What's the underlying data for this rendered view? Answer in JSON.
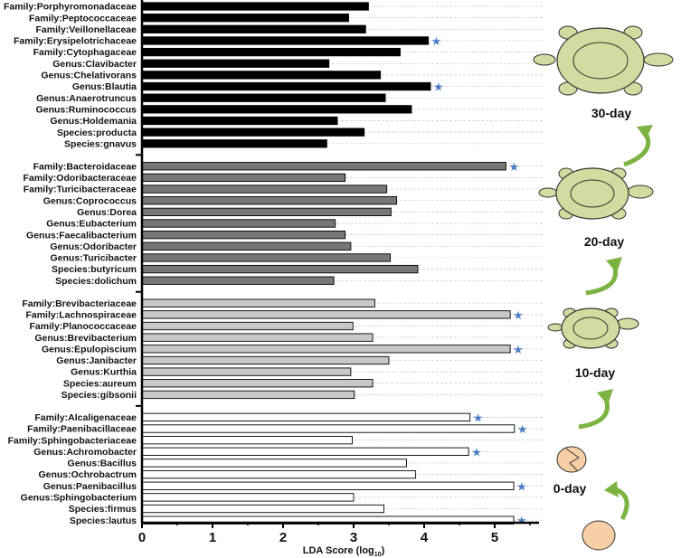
{
  "chart_data": {
    "type": "bar",
    "orientation": "horizontal",
    "xlabel": "LDA Score (log",
    "xlabel_sub": "10",
    "xlabel_end": ")",
    "xlim": [
      0,
      5.6
    ],
    "xticks": [
      "0",
      "1",
      "2",
      "3",
      "4",
      "5"
    ],
    "significant_marker": "★",
    "groups": [
      {
        "stage": "30-day",
        "color": "#000000",
        "bars": [
          {
            "label": "Family:Porphyromonadaceae",
            "value": 3.21,
            "significant": false
          },
          {
            "label": "Family:Peptococcaceae",
            "value": 2.93,
            "significant": false
          },
          {
            "label": "Family:Veillonellaceae",
            "value": 3.17,
            "significant": false
          },
          {
            "label": "Family:Erysipelotrichaceae",
            "value": 4.06,
            "significant": true
          },
          {
            "label": "Family:Cytophagaceae",
            "value": 3.66,
            "significant": false
          },
          {
            "label": "Genus:Clavibacter",
            "value": 2.65,
            "significant": false
          },
          {
            "label": "Genus:Chelativorans",
            "value": 3.38,
            "significant": false
          },
          {
            "label": "Genus:Blautia",
            "value": 4.09,
            "significant": true
          },
          {
            "label": "Genus:Anaerotruncus",
            "value": 3.45,
            "significant": false
          },
          {
            "label": "Genus:Ruminococcus",
            "value": 3.82,
            "significant": false
          },
          {
            "label": "Genus:Holdemania",
            "value": 2.77,
            "significant": false
          },
          {
            "label": "Species:producta",
            "value": 3.15,
            "significant": false
          },
          {
            "label": "Species:gnavus",
            "value": 2.62,
            "significant": false
          }
        ]
      },
      {
        "stage": "20-day",
        "color": "#777777",
        "bars": [
          {
            "label": "Family:Bacteroidaceae",
            "value": 5.16,
            "significant": true
          },
          {
            "label": "Family:Odoribacteraceae",
            "value": 2.88,
            "significant": false
          },
          {
            "label": "Family:Turicibacteraceae",
            "value": 3.47,
            "significant": false
          },
          {
            "label": "Genus:Coprococcus",
            "value": 3.61,
            "significant": false
          },
          {
            "label": "Genus:Dorea",
            "value": 3.53,
            "significant": false
          },
          {
            "label": "Genus:Eubacterium",
            "value": 2.74,
            "significant": false
          },
          {
            "label": "Genus:Faecalibacterium",
            "value": 2.88,
            "significant": false
          },
          {
            "label": "Genus:Odoribacter",
            "value": 2.96,
            "significant": false
          },
          {
            "label": "Genus:Turicibacter",
            "value": 3.52,
            "significant": false
          },
          {
            "label": "Species:butyricum",
            "value": 3.91,
            "significant": false
          },
          {
            "label": "Species:dolichum",
            "value": 2.72,
            "significant": false
          }
        ]
      },
      {
        "stage": "10-day",
        "color": "#c8c8c8",
        "bars": [
          {
            "label": "Family:Brevibacteriaceae",
            "value": 3.3,
            "significant": false
          },
          {
            "label": "Family:Lachnospiraceae",
            "value": 5.22,
            "significant": true
          },
          {
            "label": "Family:Planococcaceae",
            "value": 2.99,
            "significant": false
          },
          {
            "label": "Genus:Brevibacterium",
            "value": 3.27,
            "significant": false
          },
          {
            "label": "Genus:Epulopiscium",
            "value": 5.22,
            "significant": true
          },
          {
            "label": "Genus:Janibacter",
            "value": 3.5,
            "significant": false
          },
          {
            "label": "Genus:Kurthia",
            "value": 2.96,
            "significant": false
          },
          {
            "label": "Species:aureum",
            "value": 3.27,
            "significant": false
          },
          {
            "label": "Species:gibsonii",
            "value": 3.01,
            "significant": false
          }
        ]
      },
      {
        "stage": "0-day",
        "color": "#ffffff",
        "bars": [
          {
            "label": "Family:Alcaligenaceae",
            "value": 4.65,
            "significant": true
          },
          {
            "label": "Family:Paenibacillaceae",
            "value": 5.28,
            "significant": true
          },
          {
            "label": "Family:Sphingobacteriaceae",
            "value": 2.98,
            "significant": false
          },
          {
            "label": "Genus:Achromobacter",
            "value": 4.63,
            "significant": true
          },
          {
            "label": "Genus:Bacillus",
            "value": 3.75,
            "significant": false
          },
          {
            "label": "Genus:Ochrobactrum",
            "value": 3.88,
            "significant": false
          },
          {
            "label": "Genus:Paenibacillus",
            "value": 5.27,
            "significant": true
          },
          {
            "label": "Genus:Sphingobacterium",
            "value": 3.0,
            "significant": false
          },
          {
            "label": "Species:firmus",
            "value": 3.43,
            "significant": false
          },
          {
            "label": "Species:lautus",
            "value": 5.27,
            "significant": true
          }
        ]
      }
    ],
    "grid": "dashed horizontal lines per row",
    "star_color": "#4a7cc4",
    "illustration_colors": {
      "turtle": "#d3dba0",
      "egg": "#f7cfa6",
      "arrow": "#7cb342"
    }
  }
}
